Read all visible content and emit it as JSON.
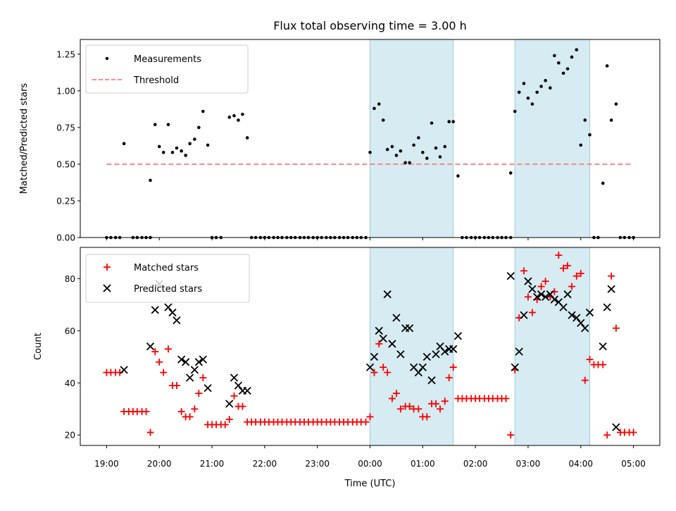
{
  "chart_data": [
    {
      "type": "scatter",
      "title": "Flux total observing time = 3.00 h",
      "xlabel": "",
      "ylabel": "Matched/Predicted stars",
      "xlim": [
        18.5,
        29.5
      ],
      "ylim": [
        0,
        1.35
      ],
      "yticks": [
        0.0,
        0.25,
        0.5,
        0.75,
        1.0,
        1.25
      ],
      "ytick_labels": [
        "0.00",
        "0.25",
        "0.50",
        "0.75",
        "1.00",
        "1.25"
      ],
      "shaded_spans": [
        [
          24.0,
          25.58
        ],
        [
          26.75,
          28.17
        ]
      ],
      "legend": {
        "placement": "upper-left",
        "entries": [
          "Measurements",
          "Threshold"
        ]
      },
      "threshold": {
        "name": "Threshold",
        "value": 0.5,
        "x_range": [
          19.0,
          29.0
        ],
        "color": "#ff7f7f"
      },
      "series": [
        {
          "name": "Measurements",
          "color": "#000000",
          "x": [
            19.0,
            19.08,
            19.17,
            19.25,
            19.33,
            19.5,
            19.58,
            19.67,
            19.75,
            19.83,
            19.83,
            19.92,
            20.0,
            20.08,
            20.17,
            20.25,
            20.33,
            20.42,
            20.5,
            20.58,
            20.67,
            20.75,
            20.83,
            20.92,
            21.0,
            21.08,
            21.17,
            21.33,
            21.42,
            21.5,
            21.58,
            21.67,
            21.75,
            21.83,
            21.92,
            22.0,
            22.08,
            22.17,
            22.25,
            22.33,
            22.42,
            22.5,
            22.58,
            22.67,
            22.75,
            22.83,
            22.92,
            23.0,
            23.08,
            23.17,
            23.25,
            23.33,
            23.42,
            23.5,
            23.58,
            23.67,
            23.75,
            23.83,
            23.92,
            24.0,
            24.08,
            24.17,
            24.25,
            24.33,
            24.42,
            24.5,
            24.58,
            24.67,
            24.75,
            24.83,
            24.92,
            25.0,
            25.08,
            25.17,
            25.25,
            25.33,
            25.42,
            25.5,
            25.58,
            25.67,
            25.75,
            25.83,
            25.92,
            26.0,
            26.08,
            26.17,
            26.25,
            26.33,
            26.42,
            26.5,
            26.58,
            26.67,
            26.67,
            26.75,
            26.83,
            26.92,
            27.0,
            27.08,
            27.17,
            27.25,
            27.33,
            27.42,
            27.5,
            27.58,
            27.67,
            27.75,
            27.83,
            27.92,
            28.0,
            28.08,
            28.17,
            28.25,
            28.33,
            28.42,
            28.5,
            28.58,
            28.67,
            28.75,
            28.83,
            28.92,
            29.0
          ],
          "y": [
            0.0,
            0.0,
            0.0,
            0.0,
            0.64,
            0.0,
            0.0,
            0.0,
            0.0,
            0.0,
            0.39,
            0.77,
            0.62,
            0.58,
            0.77,
            0.58,
            0.61,
            0.59,
            0.56,
            0.64,
            0.67,
            0.75,
            0.86,
            0.63,
            0.0,
            0.0,
            0.0,
            0.82,
            0.83,
            0.8,
            0.84,
            0.68,
            0.0,
            0.0,
            0.0,
            0.0,
            0.0,
            0.0,
            0.0,
            0.0,
            0.0,
            0.0,
            0.0,
            0.0,
            0.0,
            0.0,
            0.0,
            0.0,
            0.0,
            0.0,
            0.0,
            0.0,
            0.0,
            0.0,
            0.0,
            0.0,
            0.0,
            0.0,
            0.0,
            0.58,
            0.88,
            0.91,
            0.8,
            0.6,
            0.62,
            0.56,
            0.59,
            0.51,
            0.51,
            0.63,
            0.68,
            0.58,
            0.54,
            0.78,
            0.61,
            0.55,
            0.62,
            0.79,
            0.79,
            0.42,
            0.0,
            0.0,
            0.0,
            0.0,
            0.0,
            0.0,
            0.0,
            0.0,
            0.0,
            0.0,
            0.0,
            0.0,
            0.44,
            0.86,
            0.99,
            1.05,
            0.95,
            0.91,
            0.99,
            1.03,
            1.07,
            1.02,
            1.24,
            1.19,
            1.12,
            1.15,
            1.23,
            1.28,
            0.63,
            0.8,
            0.7,
            0.0,
            0.0,
            0.37,
            1.17,
            0.8,
            0.91,
            0.0,
            0.0,
            0.0,
            0.0
          ]
        }
      ]
    },
    {
      "type": "scatter",
      "title": "",
      "xlabel": "Time (UTC)",
      "ylabel": "Count",
      "xlim": [
        18.5,
        29.5
      ],
      "ylim": [
        16,
        92
      ],
      "yticks": [
        20,
        40,
        60,
        80
      ],
      "ytick_labels": [
        "20",
        "40",
        "60",
        "80"
      ],
      "xticks": [
        19,
        20,
        21,
        22,
        23,
        24,
        25,
        26,
        27,
        28,
        29
      ],
      "xtick_labels": [
        "19:00",
        "20:00",
        "21:00",
        "22:00",
        "23:00",
        "00:00",
        "01:00",
        "02:00",
        "03:00",
        "04:00",
        "05:00"
      ],
      "shaded_spans": [
        [
          24.0,
          25.58
        ],
        [
          26.75,
          28.17
        ]
      ],
      "legend": {
        "placement": "upper-left",
        "entries": [
          "Matched stars",
          "Predicted stars"
        ]
      },
      "series": [
        {
          "name": "Matched stars",
          "marker": "plus",
          "color": "#ff0000",
          "x": [
            19.0,
            19.08,
            19.17,
            19.25,
            19.33,
            19.42,
            19.5,
            19.58,
            19.67,
            19.75,
            19.83,
            19.92,
            20.0,
            20.08,
            20.17,
            20.25,
            20.33,
            20.42,
            20.5,
            20.58,
            20.67,
            20.75,
            20.83,
            20.92,
            21.0,
            21.08,
            21.17,
            21.25,
            21.33,
            21.42,
            21.5,
            21.58,
            21.67,
            21.75,
            21.83,
            21.92,
            22.0,
            22.08,
            22.17,
            22.25,
            22.33,
            22.42,
            22.5,
            22.58,
            22.67,
            22.75,
            22.83,
            22.92,
            23.0,
            23.08,
            23.17,
            23.25,
            23.33,
            23.42,
            23.5,
            23.58,
            23.67,
            23.75,
            23.83,
            23.92,
            24.0,
            24.08,
            24.17,
            24.25,
            24.33,
            24.42,
            24.5,
            24.58,
            24.67,
            24.75,
            24.83,
            24.92,
            25.0,
            25.08,
            25.17,
            25.25,
            25.33,
            25.42,
            25.5,
            25.58,
            25.67,
            25.75,
            25.83,
            25.92,
            26.0,
            26.08,
            26.17,
            26.25,
            26.33,
            26.42,
            26.5,
            26.58,
            26.67,
            26.75,
            26.83,
            26.92,
            27.0,
            27.08,
            27.17,
            27.25,
            27.33,
            27.42,
            27.5,
            27.58,
            27.67,
            27.75,
            27.83,
            27.92,
            28.0,
            28.08,
            28.17,
            28.25,
            28.33,
            28.42,
            28.5,
            28.58,
            28.67,
            28.75,
            28.83,
            28.92,
            29.0
          ],
          "y": [
            44,
            44,
            44,
            44,
            29,
            29,
            29,
            29,
            29,
            29,
            21,
            52,
            48,
            44,
            53,
            39,
            39,
            29,
            27,
            27,
            30,
            36,
            42,
            24,
            24,
            24,
            24,
            24,
            26,
            35,
            31,
            31,
            25,
            25,
            25,
            25,
            25,
            25,
            25,
            25,
            25,
            25,
            25,
            25,
            25,
            25,
            25,
            25,
            25,
            25,
            25,
            25,
            25,
            25,
            25,
            25,
            25,
            25,
            25,
            25,
            27,
            44,
            55,
            46,
            44,
            34,
            36,
            30,
            31,
            31,
            30,
            30,
            27,
            27,
            32,
            32,
            30,
            33,
            42,
            46,
            34,
            34,
            34,
            34,
            34,
            34,
            34,
            34,
            34,
            34,
            34,
            34,
            20,
            45,
            65,
            83,
            73,
            67,
            72,
            77,
            79,
            73,
            75,
            89,
            84,
            85,
            77,
            81,
            82,
            41,
            49,
            47,
            47,
            47,
            20,
            81,
            61,
            21,
            21,
            21,
            21
          ]
        },
        {
          "name": "Predicted stars",
          "marker": "x",
          "color": "#000000",
          "x": [
            19.33,
            19.83,
            19.92,
            20.0,
            20.17,
            20.25,
            20.33,
            20.42,
            20.5,
            20.58,
            20.67,
            20.75,
            20.83,
            20.92,
            21.33,
            21.42,
            21.5,
            21.58,
            21.67,
            24.0,
            24.08,
            24.17,
            24.25,
            24.33,
            24.42,
            24.5,
            24.58,
            24.67,
            24.75,
            24.83,
            24.92,
            25.0,
            25.08,
            25.17,
            25.25,
            25.33,
            25.42,
            25.5,
            25.58,
            25.67,
            26.67,
            26.75,
            26.83,
            26.92,
            27.0,
            27.08,
            27.17,
            27.25,
            27.33,
            27.42,
            27.5,
            27.58,
            27.67,
            27.75,
            27.83,
            27.92,
            28.0,
            28.08,
            28.17,
            28.42,
            28.5,
            28.58,
            28.67
          ],
          "y": [
            45,
            54,
            68,
            78,
            69,
            67,
            64,
            49,
            48,
            42,
            45,
            48,
            49,
            38,
            32,
            42,
            39,
            37,
            37,
            46,
            50,
            60,
            57,
            74,
            55,
            65,
            51,
            61,
            61,
            46,
            44,
            46,
            50,
            41,
            51,
            54,
            52,
            53,
            53,
            58,
            81,
            46,
            52,
            66,
            79,
            76,
            73,
            74,
            73,
            74,
            72,
            71,
            69,
            74,
            66,
            65,
            63,
            61,
            67,
            54,
            69,
            76,
            23
          ]
        }
      ]
    }
  ]
}
